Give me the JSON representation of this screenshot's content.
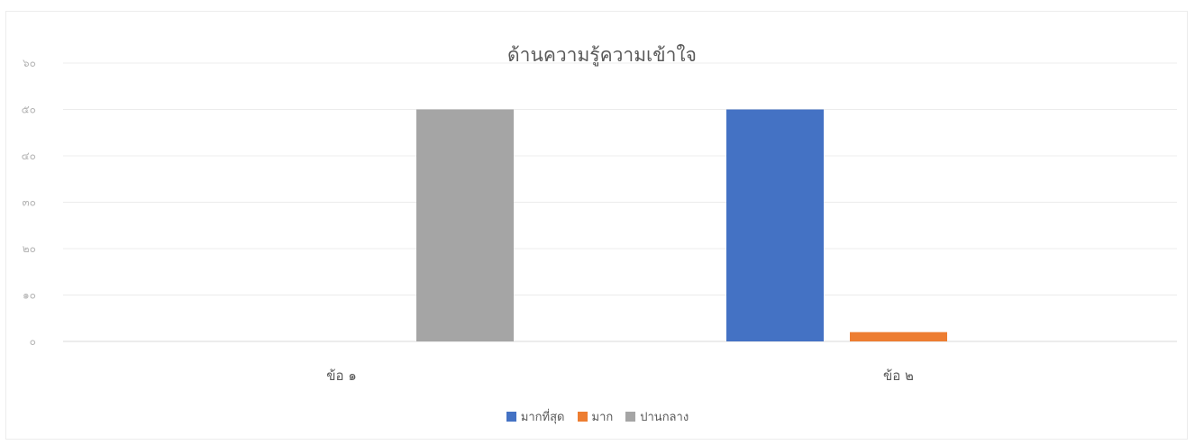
{
  "chart_data": {
    "type": "bar",
    "title": "ด้านความรู้ความเข้าใจ",
    "categories": [
      "ข้อ ๑",
      "ข้อ ๒"
    ],
    "series": [
      {
        "name": "มากที่สุด",
        "color": "#4472C4",
        "values": [
          0,
          50
        ]
      },
      {
        "name": "มาก",
        "color": "#ED7D31",
        "values": [
          0,
          2
        ]
      },
      {
        "name": "ปานกลาง",
        "color": "#A5A5A5",
        "values": [
          50,
          0
        ]
      }
    ],
    "y_ticks": [
      "๐",
      "๑๐",
      "๒๐",
      "๓๐",
      "๔๐",
      "๕๐",
      "๖๐"
    ],
    "ylim": [
      0,
      60
    ],
    "grid": true,
    "legend_position": "bottom"
  }
}
